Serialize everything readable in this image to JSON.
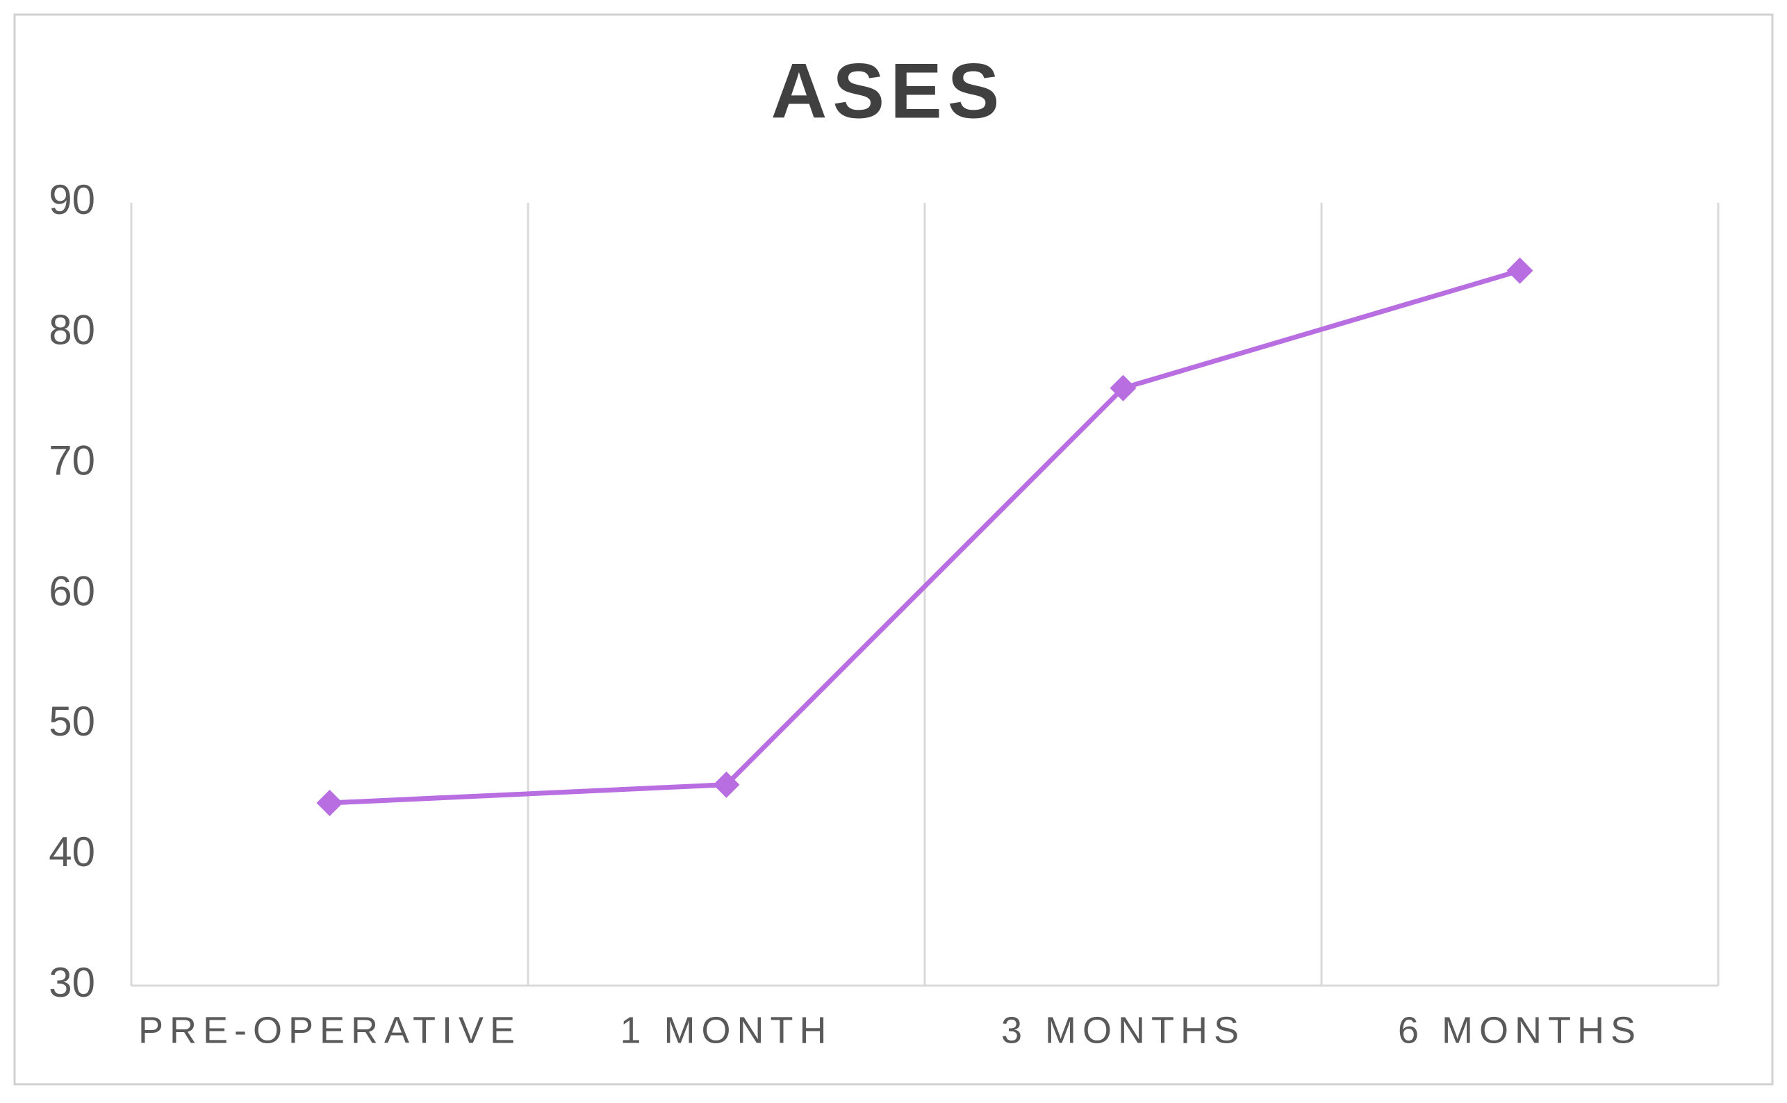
{
  "chart_data": {
    "type": "line",
    "title": "ASES",
    "categories": [
      "PRE-OPERATIVE",
      "1 MONTH",
      "3 MONTHS",
      "6 MONTHS"
    ],
    "series": [
      {
        "name": "ASES",
        "color": "#b86ee0",
        "values": [
          44,
          45.4,
          75.8,
          84.8
        ]
      }
    ],
    "ylim": [
      30,
      90
    ],
    "yticks": [
      30,
      40,
      50,
      60,
      70,
      80,
      90
    ],
    "grid": true,
    "marker": "diamond"
  }
}
